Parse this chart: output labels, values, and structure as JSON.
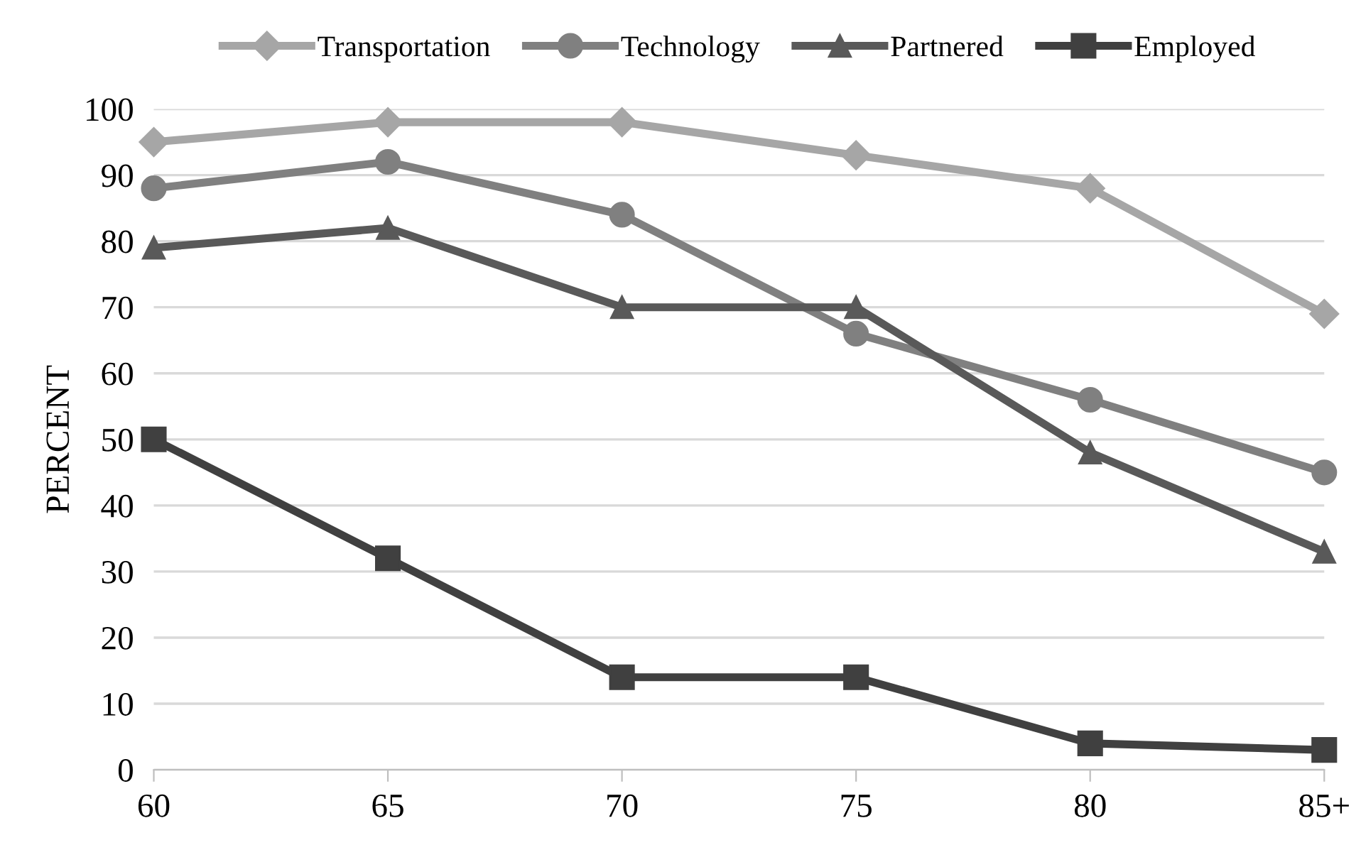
{
  "chart_data": {
    "type": "line",
    "ylabel": "PERCENT",
    "categories": [
      "60",
      "65",
      "70",
      "75",
      "80",
      "85+"
    ],
    "series": [
      {
        "name": "Transportation",
        "color": "#a6a6a6",
        "marker": "diamond",
        "values": [
          95,
          98,
          98,
          93,
          88,
          69
        ]
      },
      {
        "name": "Technology",
        "color": "#808080",
        "marker": "circle",
        "values": [
          88,
          92,
          84,
          66,
          56,
          45
        ]
      },
      {
        "name": "Partnered",
        "color": "#595959",
        "marker": "triangle",
        "values": [
          79,
          82,
          70,
          70,
          48,
          33
        ]
      },
      {
        "name": "Employed",
        "color": "#404040",
        "marker": "square",
        "values": [
          50,
          32,
          14,
          14,
          4,
          3
        ]
      }
    ],
    "ylim": [
      0,
      100
    ],
    "yticks": [
      0,
      10,
      20,
      30,
      40,
      50,
      60,
      70,
      80,
      90,
      100
    ],
    "grid": "y",
    "legend": "top",
    "line_style": "solid"
  }
}
